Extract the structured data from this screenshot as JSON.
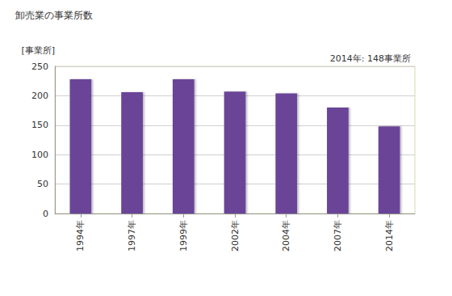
{
  "chart_data": {
    "type": "bar",
    "title": "卸売業の事業所数",
    "y_label": "[事業所]",
    "annotation": "2014年: 148事業所",
    "categories": [
      "1994年",
      "1997年",
      "1999年",
      "2002年",
      "2004年",
      "2007年",
      "2014年"
    ],
    "values": [
      228,
      206,
      228,
      207,
      204,
      180,
      148
    ],
    "color": "#6a4497",
    "ylim": [
      0,
      250
    ],
    "yticks": [
      0,
      50,
      100,
      150,
      200,
      250
    ],
    "grid": true
  }
}
